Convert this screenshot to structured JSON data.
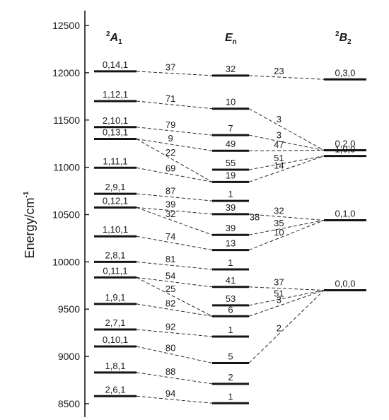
{
  "chart_data": {
    "type": "energy-level-diagram",
    "ylabel": "Energy/cm",
    "ylabel_superscript": "-1",
    "ylim": [
      8380,
      12560
    ],
    "yticks": [
      8500,
      9000,
      9500,
      10000,
      10500,
      11000,
      11500,
      12000,
      12500
    ],
    "columns": {
      "A1": {
        "prefix": "2",
        "label": "A",
        "sub": "1"
      },
      "En": {
        "label": "E",
        "sub": "n"
      },
      "B2": {
        "prefix": "2",
        "label": "B",
        "sub": "2"
      }
    },
    "left_levels": [
      {
        "label": "0,14,1",
        "energy": 12015
      },
      {
        "label": "1,12,1",
        "energy": 11700
      },
      {
        "label": "2,10,1",
        "energy": 11425
      },
      {
        "label": "0,13,1",
        "energy": 11300
      },
      {
        "label": "1,11,1",
        "energy": 10995
      },
      {
        "label": "2,9,1",
        "energy": 10720
      },
      {
        "label": "0,12,1",
        "energy": 10575
      },
      {
        "label": "1,10,1",
        "energy": 10270
      },
      {
        "label": "2,8,1",
        "energy": 10000
      },
      {
        "label": "0,11,1",
        "energy": 9835
      },
      {
        "label": "1,9,1",
        "energy": 9555
      },
      {
        "label": "2,7,1",
        "energy": 9285
      },
      {
        "label": "0,10,1",
        "energy": 9105
      },
      {
        "label": "1,8,1",
        "energy": 8830
      },
      {
        "label": "2,6,1",
        "energy": 8580
      }
    ],
    "middle_levels": [
      {
        "label": "32",
        "energy": 11970
      },
      {
        "label": "10",
        "energy": 11620
      },
      {
        "label": "7",
        "energy": 11340
      },
      {
        "label": "49",
        "energy": 11175
      },
      {
        "label": "55",
        "energy": 10975
      },
      {
        "label": "19",
        "energy": 10845
      },
      {
        "label": "1",
        "energy": 10645
      },
      {
        "label": "39",
        "energy": 10505
      },
      {
        "label": "39",
        "energy": 10285
      },
      {
        "label": "13",
        "energy": 10125
      },
      {
        "label": "1",
        "energy": 9920
      },
      {
        "label": "41",
        "energy": 9735
      },
      {
        "label": "53",
        "energy": 9540
      },
      {
        "label": "6",
        "energy": 9425
      },
      {
        "label": "1",
        "energy": 9210
      },
      {
        "label": "5",
        "energy": 8930
      },
      {
        "label": "2",
        "energy": 8710
      },
      {
        "label": "1",
        "energy": 8505
      }
    ],
    "right_levels": [
      {
        "label": "0,3,0",
        "energy": 11930
      },
      {
        "label": "0,2,0",
        "energy": 11180
      },
      {
        "label": "1,0,0",
        "energy": 11120
      },
      {
        "label": "0,1,0",
        "energy": 10440
      },
      {
        "label": "0,0,0",
        "energy": 9700
      }
    ],
    "left_connections": [
      {
        "from": 0,
        "to": 0,
        "value": "37"
      },
      {
        "from": 1,
        "to": 1,
        "value": "71"
      },
      {
        "from": 2,
        "to": 2,
        "value": "79"
      },
      {
        "from": 3,
        "to": 3,
        "value": "9"
      },
      {
        "from": 3,
        "to": 5,
        "value": "22"
      },
      {
        "from": 4,
        "to": 5,
        "value": "69"
      },
      {
        "from": 5,
        "to": 6,
        "value": "87"
      },
      {
        "from": 6,
        "to": 7,
        "value": "39"
      },
      {
        "from": 6,
        "to": 8,
        "value": "32"
      },
      {
        "from": 7,
        "to": 9,
        "value": "74"
      },
      {
        "from": 8,
        "to": 10,
        "value": "81"
      },
      {
        "from": 9,
        "to": 11,
        "value": "54"
      },
      {
        "from": 9,
        "to": 13,
        "value": "25"
      },
      {
        "from": 10,
        "to": 13,
        "value": "82"
      },
      {
        "from": 11,
        "to": 14,
        "value": "92"
      },
      {
        "from": 12,
        "to": 15,
        "value": "80"
      },
      {
        "from": 13,
        "to": 16,
        "value": "88"
      },
      {
        "from": 14,
        "to": 17,
        "value": "94"
      }
    ],
    "right_connections": [
      {
        "from": 0,
        "to": 0,
        "value": "23"
      },
      {
        "from": 1,
        "to": 1,
        "value": "3"
      },
      {
        "from": 2,
        "to": 1,
        "value": "3"
      },
      {
        "from": 3,
        "to": 1,
        "value": "47"
      },
      {
        "from": 4,
        "to": 2,
        "value": "51"
      },
      {
        "from": 5,
        "to": 2,
        "value": "14"
      },
      {
        "from": 7,
        "to": 3,
        "value": "32"
      },
      {
        "from": 8,
        "to": 3,
        "value": "35"
      },
      {
        "from": 9,
        "to": 3,
        "value": "10"
      },
      {
        "from": 11,
        "to": 4,
        "value": "37"
      },
      {
        "from": 12,
        "to": 4,
        "value": "51"
      },
      {
        "from": 13,
        "to": 4,
        "value": "3"
      },
      {
        "from": 15,
        "to": 4,
        "value": "2"
      }
    ],
    "extra_labels": [
      {
        "text": "38",
        "energy": 10560
      }
    ]
  }
}
